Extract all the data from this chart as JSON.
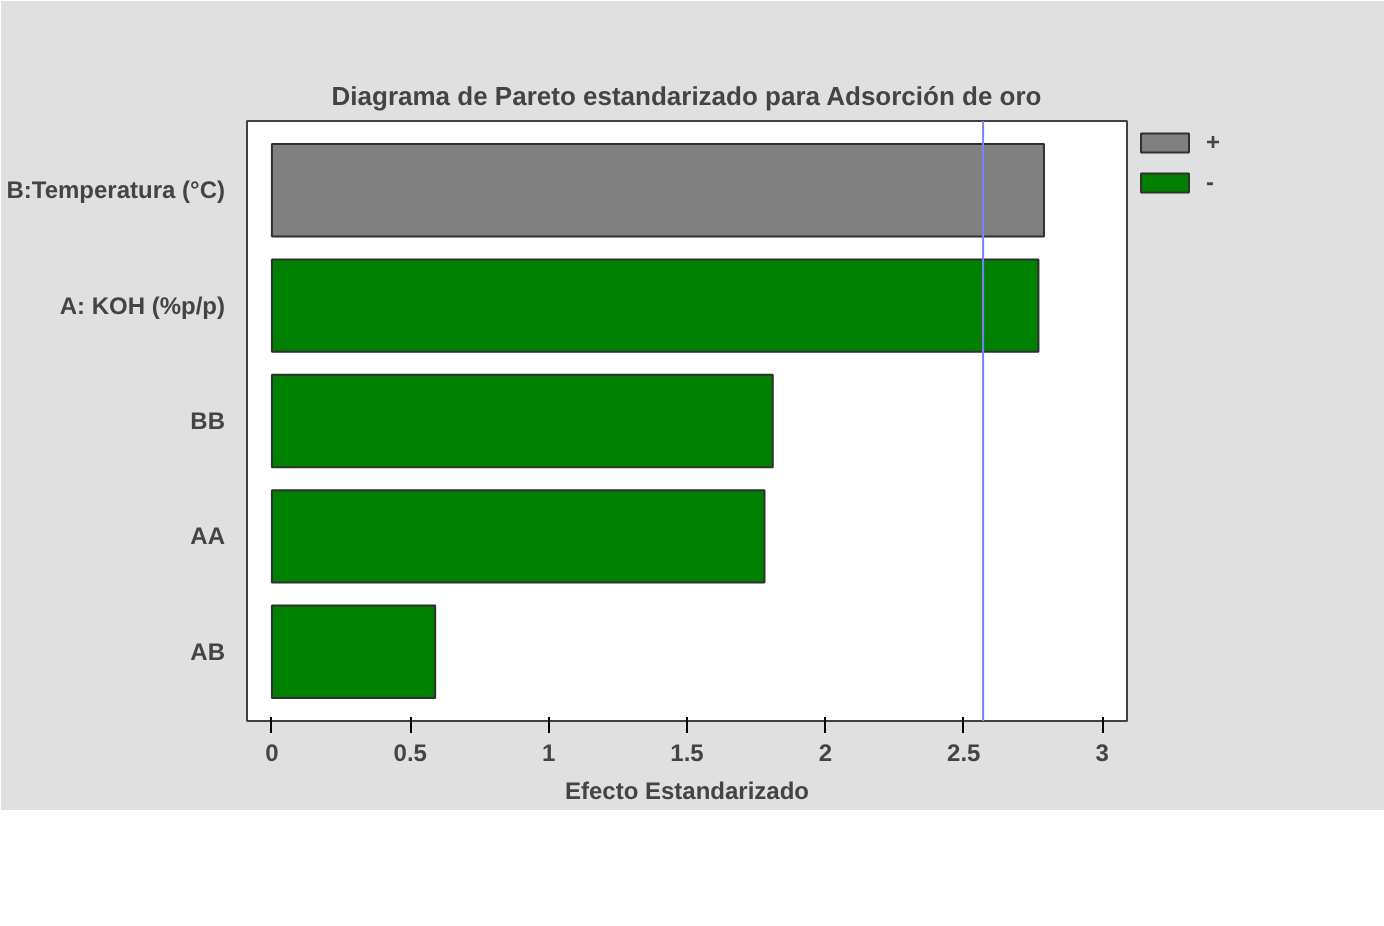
{
  "chart_data": {
    "type": "bar",
    "orientation": "horizontal",
    "title": "Diagrama de Pareto estandarizado para Adsorción de oro",
    "xlabel": "Efecto Estandarizado",
    "categories": [
      "B:Temperatura (°C)",
      "A: KOH (%p/p)",
      "BB",
      "AA",
      "AB"
    ],
    "series": [
      {
        "name": "+",
        "color": "#808080",
        "values": [
          2.79,
          null,
          null,
          null,
          null
        ]
      },
      {
        "name": "-",
        "color": "#008000",
        "values": [
          null,
          2.77,
          1.81,
          1.78,
          0.59
        ]
      }
    ],
    "xlim": [
      -0.09,
      3.09
    ],
    "xticks": [
      0,
      0.5,
      1,
      1.5,
      2,
      2.5,
      3
    ],
    "ref_lines": [
      {
        "axis": "x",
        "value": 2.57,
        "color": "#8080ff"
      }
    ],
    "grid": false,
    "legend": "top right"
  }
}
